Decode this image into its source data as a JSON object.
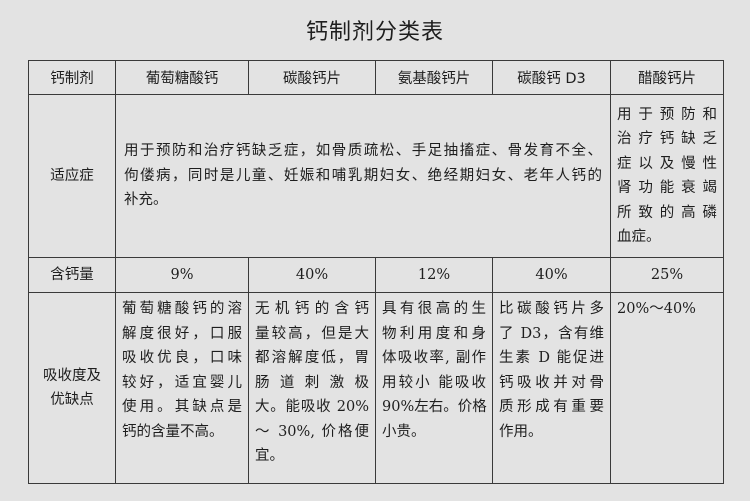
{
  "title": "钙制剂分类表",
  "headers": [
    "钙制剂",
    "葡萄糖酸钙",
    "碳酸钙片",
    "氨基酸钙片",
    "碳酸钙 D3",
    "醋酸钙片"
  ],
  "rows": {
    "indication": {
      "label": "适应症",
      "shared_lines": [
        "用于预防和治疗钙缺乏症，如骨质疏松、手足抽搐症、骨发育不全、",
        "佝偻病，同时是儿童、妊娠和哺乳期妇女、绝经期妇女、老年人钙的",
        "补充。"
      ],
      "acetate_lines": [
        "用于预防和",
        "治疗钙缺乏",
        "症以及慢性",
        "肾功能衰竭",
        "所致的高磷",
        "血症。"
      ]
    },
    "calcium_content": {
      "label": "含钙量",
      "values": [
        "9%",
        "40%",
        "12%",
        "40%",
        "25%"
      ]
    },
    "absorption": {
      "label_lines": [
        "吸收度及",
        "优缺点"
      ],
      "cells": [
        [
          "葡萄糖酸钙的溶",
          "解度很好，口服",
          "吸收优良，口味",
          "较好，适宜婴儿",
          "使用。其缺点是",
          "钙的含量不高。"
        ],
        [
          "无机钙的含钙",
          "量较高，但是大",
          "都溶解度低，胃",
          "肠道刺激极",
          "大。能吸收 20%",
          "～ 30%, 价格便",
          "宜。"
        ],
        [
          "具有很高的生",
          "物利用度和身",
          "体吸收率, 副作",
          "用较小 能吸收",
          "90%左右。价格",
          "小贵。"
        ],
        [
          "比碳酸钙片多",
          "了 D3，含有维",
          "生素 D 能促进",
          "钙吸收并对骨",
          "质形成有重要",
          "作用。"
        ],
        [
          "20%～40%"
        ]
      ]
    }
  }
}
